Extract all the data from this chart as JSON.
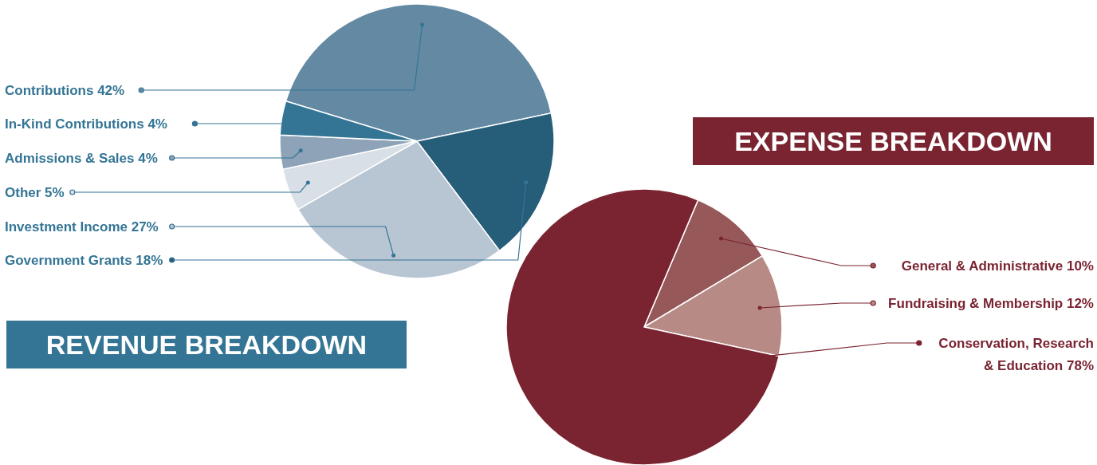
{
  "chart_data": [
    {
      "type": "pie",
      "title": "REVENUE BREAKDOWN",
      "categories": [
        "Contributions",
        "Government Grants",
        "Investment Income",
        "Other",
        "Admissions & Sales",
        "In-Kind Contributions"
      ],
      "values": [
        42,
        18,
        27,
        5,
        4,
        4
      ],
      "colors": [
        "#6389a3",
        "#265e7a",
        "#b8c5d3",
        "#d9dfe6",
        "#8ea3b8",
        "#347595"
      ],
      "value_labels": [
        "42%",
        "18%",
        "27%",
        "5%",
        "4%",
        "4%"
      ],
      "legend": "left"
    },
    {
      "type": "pie",
      "title": "EXPENSE BREAKDOWN",
      "categories": [
        "General & Administrative",
        "Fundraising & Membership",
        "Conservation, Research & Education"
      ],
      "values": [
        10,
        12,
        78
      ],
      "colors": [
        "#97585a",
        "#b88a85",
        "#7a2331"
      ],
      "value_labels": [
        "10%",
        "12%",
        "78%"
      ],
      "legend": "right"
    }
  ]
}
